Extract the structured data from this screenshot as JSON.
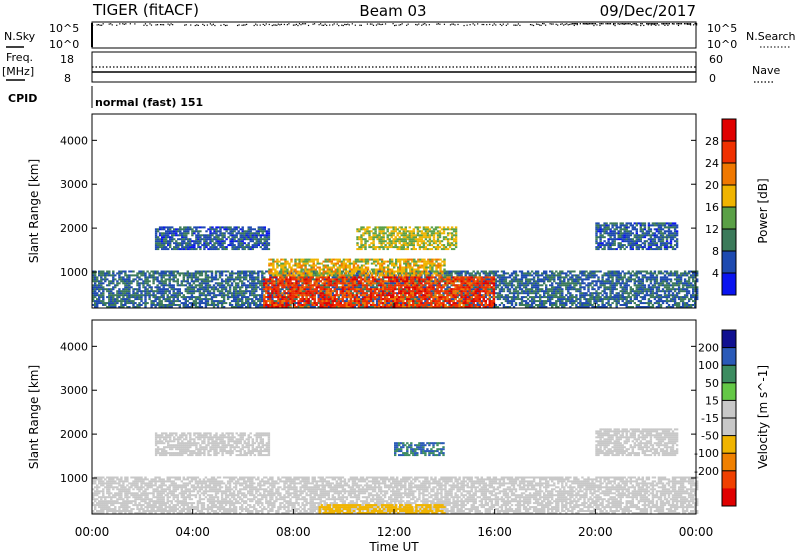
{
  "header": {
    "radar": "TIGER (fitACF)",
    "beam": "Beam 03",
    "date": "09/Dec/2017"
  },
  "top_panels": {
    "nsky_label": "N.Sky",
    "nsky_ticks": [
      "10^5",
      "10^0"
    ],
    "nsearch_label": "N.Search",
    "nsearch_ticks": [
      "10^5",
      "10^0"
    ],
    "freq_label": "Freq.",
    "freq_unit": "[MHz]",
    "freq_ticks": [
      "18",
      "8"
    ],
    "nave_label": "Nave",
    "nave_ticks": [
      "60",
      "0"
    ],
    "cpid_label": "CPID",
    "cpid_value": "normal (fast) 151"
  },
  "colors": {
    "power": [
      "#0a14f0",
      "#1e4ab0",
      "#3b7a5a",
      "#5aa046",
      "#f0b400",
      "#f07800",
      "#f03000",
      "#e00000"
    ],
    "velocity": [
      "#101090",
      "#2a5ab8",
      "#3c8c60",
      "#64c846",
      "#c8c8c8",
      "#c8c8c8",
      "#f0b400",
      "#f08000",
      "#f04000",
      "#e00000"
    ],
    "ground_scatter": "#c8c8c8"
  },
  "chart_data": [
    {
      "type": "heatmap",
      "title": "",
      "xlabel": "Time UT",
      "ylabel": "Slant Range [km]",
      "xlim": [
        "00:00",
        "24:00"
      ],
      "ylim": [
        180,
        4600
      ],
      "x_ticks": [
        "00:00",
        "04:00",
        "08:00",
        "12:00",
        "16:00",
        "20:00",
        "00:00"
      ],
      "y_ticks": [
        "1000",
        "2000",
        "3000",
        "4000"
      ],
      "colorbar": {
        "label": "Power [dB]",
        "ticks": [
          "4",
          "8",
          "12",
          "16",
          "20",
          "24",
          "28"
        ],
        "range": [
          0,
          32
        ]
      },
      "regions": [
        {
          "t_start": 0.0,
          "t_end": 24.0,
          "r_min": 180,
          "r_max": 1000,
          "value": 8
        },
        {
          "t_start": 6.8,
          "t_end": 16.0,
          "r_min": 180,
          "r_max": 900,
          "value": 26
        },
        {
          "t_start": 7.0,
          "t_end": 14.0,
          "r_min": 900,
          "r_max": 1300,
          "value": 18
        },
        {
          "t_start": 2.5,
          "t_end": 7.0,
          "r_min": 1500,
          "r_max": 2000,
          "value": 7
        },
        {
          "t_start": 20.0,
          "t_end": 23.2,
          "r_min": 1500,
          "r_max": 2100,
          "value": 7
        },
        {
          "t_start": 10.5,
          "t_end": 14.5,
          "r_min": 1500,
          "r_max": 2000,
          "value": 16
        }
      ]
    },
    {
      "type": "heatmap",
      "title": "",
      "xlabel": "Time UT",
      "ylabel": "Slant Range [km]",
      "xlim": [
        "00:00",
        "24:00"
      ],
      "ylim": [
        180,
        4600
      ],
      "x_ticks": [
        "00:00",
        "04:00",
        "08:00",
        "12:00",
        "16:00",
        "20:00",
        "00:00"
      ],
      "y_ticks": [
        "1000",
        "2000",
        "3000",
        "4000"
      ],
      "colorbar": {
        "label": "Velocity [m s^-1]",
        "ticks": [
          "200",
          "100",
          "50",
          "15",
          "-15",
          "-50",
          "-100",
          "-200"
        ],
        "range": [
          -250,
          250
        ]
      },
      "regions": [
        {
          "t_start": 0.0,
          "t_end": 24.0,
          "r_min": 180,
          "r_max": 1000,
          "value": 0
        },
        {
          "t_start": 9.0,
          "t_end": 14.0,
          "r_min": 180,
          "r_max": 400,
          "value": -60
        },
        {
          "t_start": 12.0,
          "t_end": 14.0,
          "r_min": 1500,
          "r_max": 1800,
          "value": 150
        },
        {
          "t_start": 2.5,
          "t_end": 7.0,
          "r_min": 1500,
          "r_max": 2000,
          "value": 0
        },
        {
          "t_start": 20.0,
          "t_end": 23.2,
          "r_min": 1500,
          "r_max": 2100,
          "value": 0
        }
      ]
    }
  ]
}
